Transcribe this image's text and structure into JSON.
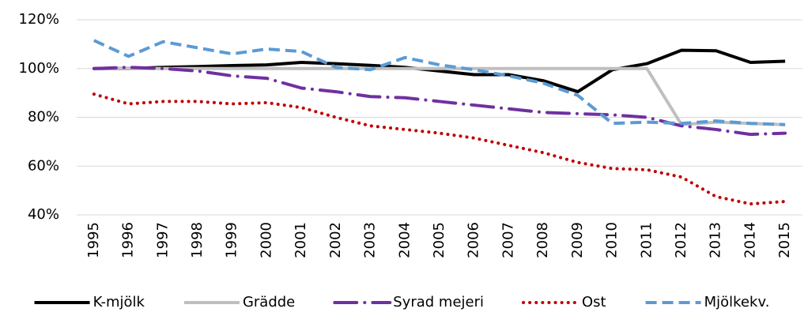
{
  "chart_data": {
    "type": "line",
    "categories": [
      "1995",
      "1996",
      "1997",
      "1998",
      "1999",
      "2000",
      "2001",
      "2002",
      "2003",
      "2004",
      "2005",
      "2006",
      "2007",
      "2008",
      "2009",
      "2010",
      "2011",
      "2012",
      "2013",
      "2014",
      "2015"
    ],
    "series": [
      {
        "name": "K-mjölk",
        "color": "#000000",
        "dash": "solid",
        "values": [
          100,
          100,
          100.5,
          100.8,
          101.2,
          101.5,
          102.5,
          102,
          101.3,
          100.5,
          99,
          97.5,
          97.5,
          95,
          90.5,
          99.5,
          102,
          107.5,
          107.3,
          102.5,
          103
        ]
      },
      {
        "name": "Grädde",
        "color": "#bfbfbf",
        "dash": "solid",
        "values": [
          100,
          100,
          100,
          100,
          100,
          100,
          100,
          100,
          100,
          100,
          100,
          100,
          100,
          100,
          100,
          100,
          100,
          77,
          78,
          77.5,
          77
        ]
      },
      {
        "name": "Syrad mejeri",
        "color": "#7030a0",
        "dash": "dashdot",
        "values": [
          100,
          100.5,
          100,
          99,
          97,
          96,
          92,
          90.5,
          88.5,
          88,
          86.5,
          85,
          83.5,
          82,
          81.5,
          81,
          80,
          76.5,
          75,
          73,
          73.5
        ]
      },
      {
        "name": "Ost",
        "color": "#c00000",
        "dash": "dot",
        "values": [
          89.5,
          85.5,
          86.5,
          86.5,
          85.5,
          86,
          84,
          80,
          76.5,
          75,
          73.5,
          71.5,
          68.5,
          65.5,
          61.5,
          59,
          58.5,
          55.5,
          47.5,
          44.5,
          45.5
        ]
      },
      {
        "name": "Mjölkekv.",
        "color": "#5b9bd5",
        "dash": "dash",
        "values": [
          111.5,
          105,
          111,
          108.5,
          106,
          108,
          107,
          100.5,
          99.5,
          104.5,
          101.5,
          99.5,
          97,
          94,
          89,
          77.5,
          78,
          77.5,
          78.5,
          77.5,
          77
        ]
      }
    ],
    "ylim": [
      40,
      120
    ],
    "yticks": [
      {
        "value": 40,
        "label": "40%"
      },
      {
        "value": 60,
        "label": "60%"
      },
      {
        "value": 80,
        "label": "80%"
      },
      {
        "value": 100,
        "label": "100%"
      },
      {
        "value": 120,
        "label": "120%"
      }
    ],
    "grid": true,
    "legend": "bottom"
  }
}
